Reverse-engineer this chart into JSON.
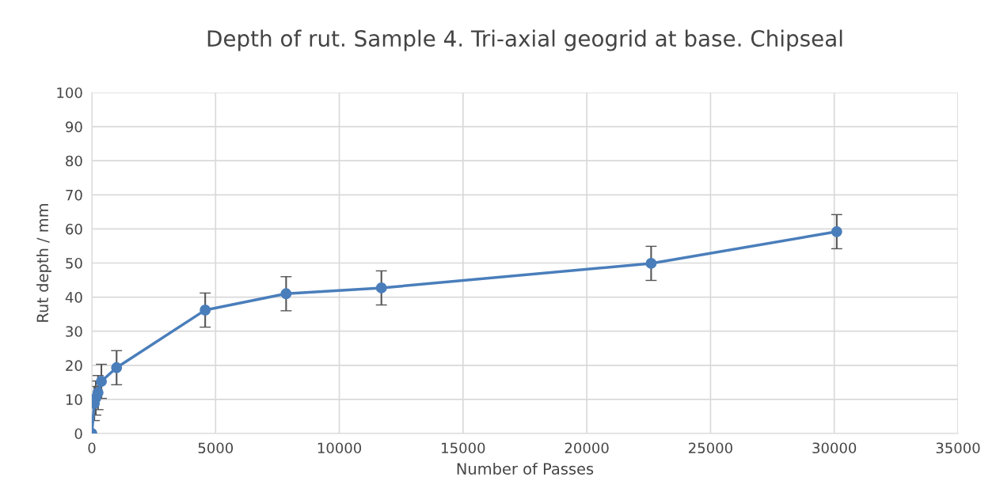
{
  "chart_data": {
    "type": "line",
    "title": "Depth of rut. Sample 4. Tri-axial geogrid at base. Chipseal",
    "xlabel": "Number of Passes",
    "ylabel": "Rut depth / mm",
    "x": [
      0,
      100,
      160,
      250,
      385,
      1000,
      4580,
      7850,
      11700,
      22600,
      30100
    ],
    "series": [
      {
        "color": "#4a7ebb",
        "values": [
          0,
          8.8,
          10.4,
          12,
          15.3,
          19.3,
          36.2,
          41,
          42.7,
          49.9,
          59.2
        ],
        "errors": [
          null,
          5,
          5,
          5,
          5,
          5,
          5,
          5,
          5,
          5,
          5
        ]
      }
    ],
    "xlim": [
      0,
      35000
    ],
    "xticks": [
      0,
      5000,
      10000,
      15000,
      20000,
      25000,
      30000,
      35000
    ],
    "ylim": [
      0,
      100
    ],
    "yticks": [
      0,
      10,
      20,
      30,
      40,
      50,
      60,
      70,
      80,
      90,
      100
    ],
    "grid": true,
    "marker": "circle",
    "line_style": "solid",
    "legend": false
  }
}
